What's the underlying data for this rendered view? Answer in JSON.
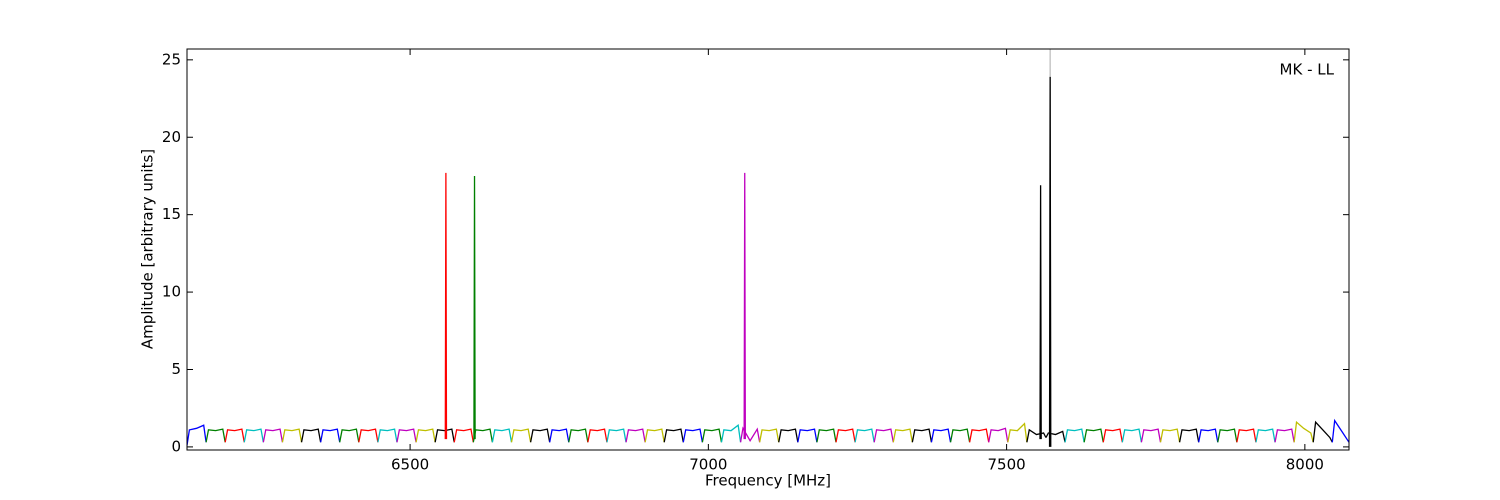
{
  "chart_data": {
    "type": "line",
    "xlabel": "Frequency [MHz]",
    "ylabel": "Amplitude [arbitrary units]",
    "annotation": "MK - LL",
    "xlim": [
      6126,
      8074
    ],
    "ylim": [
      -0.2,
      25.7
    ],
    "xticks": [
      6500,
      7000,
      7500,
      8000
    ],
    "yticks": [
      0,
      5,
      10,
      15,
      20,
      25
    ],
    "series": [
      {
        "color": "#0000ff",
        "x": [
          6126,
          6130,
          6142,
          6154,
          6158
        ],
        "values": [
          0.1,
          1.1,
          1.2,
          1.4,
          0.3
        ]
      },
      {
        "color": "#008000",
        "x": [
          6158,
          6162,
          6174,
          6186,
          6190
        ],
        "values": [
          0.3,
          1.1,
          1.05,
          1.15,
          0.3
        ]
      },
      {
        "color": "#ff0000",
        "x": [
          6190,
          6194,
          6206,
          6218,
          6222
        ],
        "values": [
          0.3,
          1.1,
          1.05,
          1.15,
          0.3
        ]
      },
      {
        "color": "#00bfbf",
        "x": [
          6222,
          6226,
          6238,
          6250,
          6254
        ],
        "values": [
          0.3,
          1.1,
          1.05,
          1.15,
          0.3
        ]
      },
      {
        "color": "#bf00bf",
        "x": [
          6254,
          6258,
          6270,
          6282,
          6286
        ],
        "values": [
          0.3,
          1.1,
          1.05,
          1.15,
          0.3
        ]
      },
      {
        "color": "#bfbf00",
        "x": [
          6286,
          6290,
          6302,
          6314,
          6318
        ],
        "values": [
          0.3,
          1.1,
          1.05,
          1.15,
          0.3
        ]
      },
      {
        "color": "#000000",
        "x": [
          6318,
          6322,
          6334,
          6346,
          6350
        ],
        "values": [
          0.3,
          1.1,
          1.05,
          1.15,
          0.3
        ]
      },
      {
        "color": "#0000ff",
        "x": [
          6350,
          6354,
          6366,
          6378,
          6382
        ],
        "values": [
          0.3,
          1.1,
          1.05,
          1.15,
          0.3
        ]
      },
      {
        "color": "#008000",
        "x": [
          6382,
          6386,
          6398,
          6410,
          6414
        ],
        "values": [
          0.3,
          1.1,
          1.05,
          1.15,
          0.3
        ]
      },
      {
        "color": "#ff0000",
        "x": [
          6414,
          6418,
          6430,
          6442,
          6446
        ],
        "values": [
          0.3,
          1.1,
          1.05,
          1.15,
          0.3
        ]
      },
      {
        "color": "#00bfbf",
        "x": [
          6446,
          6450,
          6462,
          6474,
          6478
        ],
        "values": [
          0.3,
          1.1,
          1.05,
          1.15,
          0.3
        ]
      },
      {
        "color": "#bf00bf",
        "x": [
          6478,
          6482,
          6494,
          6506,
          6510
        ],
        "values": [
          0.3,
          1.1,
          1.05,
          1.15,
          0.3
        ]
      },
      {
        "color": "#bfbf00",
        "x": [
          6510,
          6514,
          6526,
          6538,
          6542
        ],
        "values": [
          0.3,
          1.1,
          1.05,
          1.15,
          0.3
        ]
      },
      {
        "color": "#000000",
        "x": [
          6542,
          6546,
          6558,
          6570,
          6574
        ],
        "values": [
          0.3,
          1.1,
          1.05,
          1.15,
          0.3
        ]
      },
      {
        "color": "#ff0000",
        "x": [
          6574,
          6578,
          6590,
          6602,
          6606
        ],
        "values": [
          0.3,
          1.1,
          1.05,
          1.15,
          0.3
        ]
      },
      {
        "color": "#008000",
        "x": [
          6606,
          6610,
          6622,
          6634,
          6638
        ],
        "values": [
          0.3,
          1.1,
          1.05,
          1.15,
          0.3
        ]
      },
      {
        "color": "#00bfbf",
        "x": [
          6638,
          6642,
          6654,
          6666,
          6670
        ],
        "values": [
          0.3,
          1.1,
          1.05,
          1.15,
          0.3
        ]
      },
      {
        "color": "#bfbf00",
        "x": [
          6670,
          6674,
          6686,
          6698,
          6702
        ],
        "values": [
          0.3,
          1.1,
          1.05,
          1.15,
          0.3
        ]
      },
      {
        "color": "#000000",
        "x": [
          6702,
          6706,
          6718,
          6730,
          6734
        ],
        "values": [
          0.3,
          1.1,
          1.05,
          1.15,
          0.3
        ]
      },
      {
        "color": "#0000ff",
        "x": [
          6734,
          6738,
          6750,
          6762,
          6766
        ],
        "values": [
          0.3,
          1.1,
          1.05,
          1.15,
          0.3
        ]
      },
      {
        "color": "#008000",
        "x": [
          6766,
          6770,
          6782,
          6794,
          6798
        ],
        "values": [
          0.3,
          1.1,
          1.05,
          1.15,
          0.3
        ]
      },
      {
        "color": "#ff0000",
        "x": [
          6798,
          6802,
          6814,
          6826,
          6830
        ],
        "values": [
          0.3,
          1.1,
          1.05,
          1.15,
          0.3
        ]
      },
      {
        "color": "#00bfbf",
        "x": [
          6830,
          6834,
          6846,
          6858,
          6862
        ],
        "values": [
          0.3,
          1.1,
          1.05,
          1.15,
          0.3
        ]
      },
      {
        "color": "#bf00bf",
        "x": [
          6862,
          6866,
          6878,
          6890,
          6894
        ],
        "values": [
          0.3,
          1.1,
          1.05,
          1.15,
          0.3
        ]
      },
      {
        "color": "#bfbf00",
        "x": [
          6894,
          6898,
          6910,
          6922,
          6926
        ],
        "values": [
          0.3,
          1.1,
          1.05,
          1.15,
          0.3
        ]
      },
      {
        "color": "#000000",
        "x": [
          6926,
          6930,
          6942,
          6954,
          6958
        ],
        "values": [
          0.3,
          1.1,
          1.05,
          1.15,
          0.3
        ]
      },
      {
        "color": "#0000ff",
        "x": [
          6958,
          6962,
          6974,
          6986,
          6990
        ],
        "values": [
          0.3,
          1.1,
          1.05,
          1.15,
          0.3
        ]
      },
      {
        "color": "#008000",
        "x": [
          6990,
          6994,
          7006,
          7018,
          7022
        ],
        "values": [
          0.3,
          1.1,
          1.05,
          1.15,
          0.3
        ]
      },
      {
        "color": "#00bfbf",
        "x": [
          7022,
          7026,
          7038,
          7050,
          7054
        ],
        "values": [
          0.3,
          1.1,
          1.05,
          1.4,
          0.3
        ]
      },
      {
        "color": "#bf00bf",
        "x": [
          7054,
          7058,
          7070,
          7082,
          7086
        ],
        "values": [
          0.3,
          1.2,
          0.4,
          1.15,
          0.3
        ]
      },
      {
        "color": "#bfbf00",
        "x": [
          7086,
          7090,
          7102,
          7114,
          7118
        ],
        "values": [
          0.3,
          1.1,
          1.05,
          1.15,
          0.3
        ]
      },
      {
        "color": "#000000",
        "x": [
          7118,
          7122,
          7134,
          7146,
          7150
        ],
        "values": [
          0.3,
          1.1,
          1.05,
          1.15,
          0.3
        ]
      },
      {
        "color": "#0000ff",
        "x": [
          7150,
          7154,
          7166,
          7178,
          7182
        ],
        "values": [
          0.3,
          1.1,
          1.05,
          1.15,
          0.3
        ]
      },
      {
        "color": "#008000",
        "x": [
          7182,
          7186,
          7198,
          7210,
          7214
        ],
        "values": [
          0.3,
          1.1,
          1.05,
          1.15,
          0.3
        ]
      },
      {
        "color": "#ff0000",
        "x": [
          7214,
          7218,
          7230,
          7242,
          7246
        ],
        "values": [
          0.3,
          1.1,
          1.05,
          1.15,
          0.3
        ]
      },
      {
        "color": "#00bfbf",
        "x": [
          7246,
          7250,
          7262,
          7274,
          7278
        ],
        "values": [
          0.3,
          1.1,
          1.05,
          1.15,
          0.3
        ]
      },
      {
        "color": "#bf00bf",
        "x": [
          7278,
          7282,
          7294,
          7306,
          7310
        ],
        "values": [
          0.3,
          1.1,
          1.05,
          1.15,
          0.3
        ]
      },
      {
        "color": "#bfbf00",
        "x": [
          7310,
          7314,
          7326,
          7338,
          7342
        ],
        "values": [
          0.3,
          1.1,
          1.05,
          1.15,
          0.3
        ]
      },
      {
        "color": "#000000",
        "x": [
          7342,
          7346,
          7358,
          7370,
          7374
        ],
        "values": [
          0.3,
          1.1,
          1.05,
          1.15,
          0.3
        ]
      },
      {
        "color": "#0000ff",
        "x": [
          7374,
          7378,
          7390,
          7402,
          7406
        ],
        "values": [
          0.3,
          1.1,
          1.05,
          1.15,
          0.3
        ]
      },
      {
        "color": "#008000",
        "x": [
          7406,
          7410,
          7422,
          7434,
          7438
        ],
        "values": [
          0.3,
          1.1,
          1.05,
          1.15,
          0.3
        ]
      },
      {
        "color": "#ff0000",
        "x": [
          7438,
          7442,
          7454,
          7466,
          7470
        ],
        "values": [
          0.3,
          1.1,
          1.05,
          1.15,
          0.3
        ]
      },
      {
        "color": "#bf00bf",
        "x": [
          7470,
          7474,
          7486,
          7498,
          7502
        ],
        "values": [
          0.3,
          1.1,
          1.05,
          1.2,
          0.3
        ]
      },
      {
        "color": "#bfbf00",
        "x": [
          7502,
          7506,
          7518,
          7530,
          7534
        ],
        "values": [
          0.3,
          1.1,
          1.05,
          1.5,
          0.3
        ]
      },
      {
        "color": "#000000",
        "x": [
          7534,
          7538,
          7550,
          7562,
          7566
        ],
        "values": [
          0.3,
          1.1,
          0.8,
          0.9,
          0.6
        ]
      },
      {
        "color": "#000000",
        "x": [
          7566,
          7570,
          7582,
          7594,
          7598
        ],
        "values": [
          0.6,
          0.9,
          0.8,
          1.0,
          0.3
        ]
      },
      {
        "color": "#00bfbf",
        "x": [
          7598,
          7602,
          7614,
          7626,
          7630
        ],
        "values": [
          0.3,
          1.1,
          1.05,
          1.15,
          0.3
        ]
      },
      {
        "color": "#008000",
        "x": [
          7630,
          7634,
          7646,
          7658,
          7662
        ],
        "values": [
          0.3,
          1.1,
          1.05,
          1.15,
          0.3
        ]
      },
      {
        "color": "#ff0000",
        "x": [
          7662,
          7666,
          7678,
          7690,
          7694
        ],
        "values": [
          0.3,
          1.1,
          1.05,
          1.15,
          0.3
        ]
      },
      {
        "color": "#00bfbf",
        "x": [
          7694,
          7698,
          7710,
          7722,
          7726
        ],
        "values": [
          0.3,
          1.1,
          1.05,
          1.15,
          0.3
        ]
      },
      {
        "color": "#bf00bf",
        "x": [
          7726,
          7730,
          7742,
          7754,
          7758
        ],
        "values": [
          0.3,
          1.1,
          1.05,
          1.15,
          0.3
        ]
      },
      {
        "color": "#bfbf00",
        "x": [
          7758,
          7762,
          7774,
          7786,
          7790
        ],
        "values": [
          0.3,
          1.1,
          1.05,
          1.15,
          0.3
        ]
      },
      {
        "color": "#000000",
        "x": [
          7790,
          7794,
          7806,
          7818,
          7822
        ],
        "values": [
          0.3,
          1.1,
          1.05,
          1.15,
          0.3
        ]
      },
      {
        "color": "#0000ff",
        "x": [
          7822,
          7826,
          7838,
          7850,
          7854
        ],
        "values": [
          0.3,
          1.1,
          1.05,
          1.15,
          0.3
        ]
      },
      {
        "color": "#008000",
        "x": [
          7854,
          7858,
          7870,
          7882,
          7886
        ],
        "values": [
          0.3,
          1.1,
          1.05,
          1.15,
          0.3
        ]
      },
      {
        "color": "#ff0000",
        "x": [
          7886,
          7890,
          7902,
          7914,
          7918
        ],
        "values": [
          0.3,
          1.1,
          1.05,
          1.15,
          0.3
        ]
      },
      {
        "color": "#00bfbf",
        "x": [
          7918,
          7922,
          7934,
          7946,
          7950
        ],
        "values": [
          0.3,
          1.1,
          1.05,
          1.15,
          0.3
        ]
      },
      {
        "color": "#bf00bf",
        "x": [
          7950,
          7954,
          7966,
          7978,
          7982
        ],
        "values": [
          0.3,
          1.1,
          1.05,
          1.15,
          0.3
        ]
      },
      {
        "color": "#bfbf00",
        "x": [
          7982,
          7986,
          7998,
          8010,
          8014
        ],
        "values": [
          0.3,
          1.6,
          1.2,
          0.9,
          0.3
        ]
      },
      {
        "color": "#000000",
        "x": [
          8014,
          8018,
          8030,
          8042,
          8046
        ],
        "values": [
          0.3,
          1.6,
          1.1,
          0.6,
          0.3
        ]
      },
      {
        "color": "#0000ff",
        "x": [
          8046,
          8050,
          8062,
          8074
        ],
        "values": [
          0.3,
          1.7,
          1.0,
          0.3
        ]
      },
      {
        "color": "#ff0000",
        "x": [
          6559,
          6560,
          6561
        ],
        "values": [
          0.5,
          17.7,
          0.5
        ]
      },
      {
        "color": "#008000",
        "x": [
          6607,
          6608,
          6609
        ],
        "values": [
          0.5,
          17.5,
          0.5
        ]
      },
      {
        "color": "#bf00bf",
        "x": [
          7060,
          7061,
          7062
        ],
        "values": [
          0.5,
          17.7,
          0.5
        ]
      },
      {
        "color": "#000000",
        "x": [
          7556,
          7557,
          7558
        ],
        "values": [
          0.5,
          16.9,
          0.5
        ]
      },
      {
        "color": "#c0c0c0",
        "x": [
          7572,
          7573,
          7574
        ],
        "values": [
          0.5,
          25.7,
          0.5
        ]
      },
      {
        "color": "#000000",
        "x": [
          7572,
          7573,
          7574
        ],
        "values": [
          0.0,
          23.9,
          0.0
        ]
      }
    ]
  }
}
